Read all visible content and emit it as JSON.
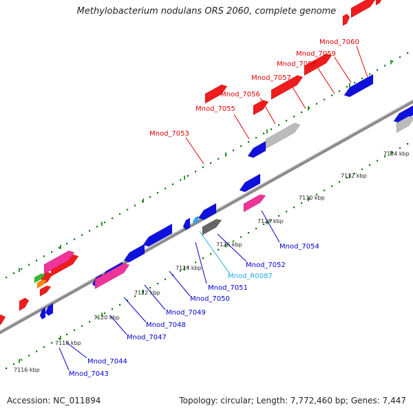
{
  "title": "Methylobacterium nodulans ORS 2060, complete genome",
  "footer": {
    "accession": "Accession: NC_011894",
    "topology": "Topology: circular; Length: 7,772,460 bp; Genes: 7,447"
  },
  "colors": {
    "backbone": "#8a8a8a",
    "forward_gene": "#ee1c1c",
    "reverse_gene": "#1010dd",
    "pink_gene": "#ee3399",
    "grey_gene": "#bbbbbb",
    "dark_grey_gene": "#666666",
    "green_gene": "#33bb33",
    "orange_gene": "#ff8800",
    "rna_gene": "#33aaee",
    "forward_label": "#dd0000",
    "reverse_label": "#0000cc",
    "rna_label": "#22aadd",
    "tick_green": "#007700"
  },
  "scale_labels": [
    "7116 kbp",
    "7118 kbp",
    "7120 kbp",
    "7122 kbp",
    "7124 kbp",
    "7126 kbp",
    "7128 kbp",
    "7130 kbp",
    "7132 kbp",
    "7134 kbp"
  ],
  "labels_top": [
    "Mnod_7053",
    "Mnod_7055",
    "Mnod_7056",
    "Mnod_7057",
    "Mnod_7058",
    "Mnod_7059",
    "Mnod_7060"
  ],
  "labels_bottom": [
    "Mnod_7043",
    "Mnod_7044",
    "Mnod_7047",
    "Mnod_7048",
    "Mnod_7049",
    "Mnod_7050",
    "Mnod_7051",
    "Mnod_R0087",
    "Mnod_7052",
    "Mnod_7054"
  ]
}
